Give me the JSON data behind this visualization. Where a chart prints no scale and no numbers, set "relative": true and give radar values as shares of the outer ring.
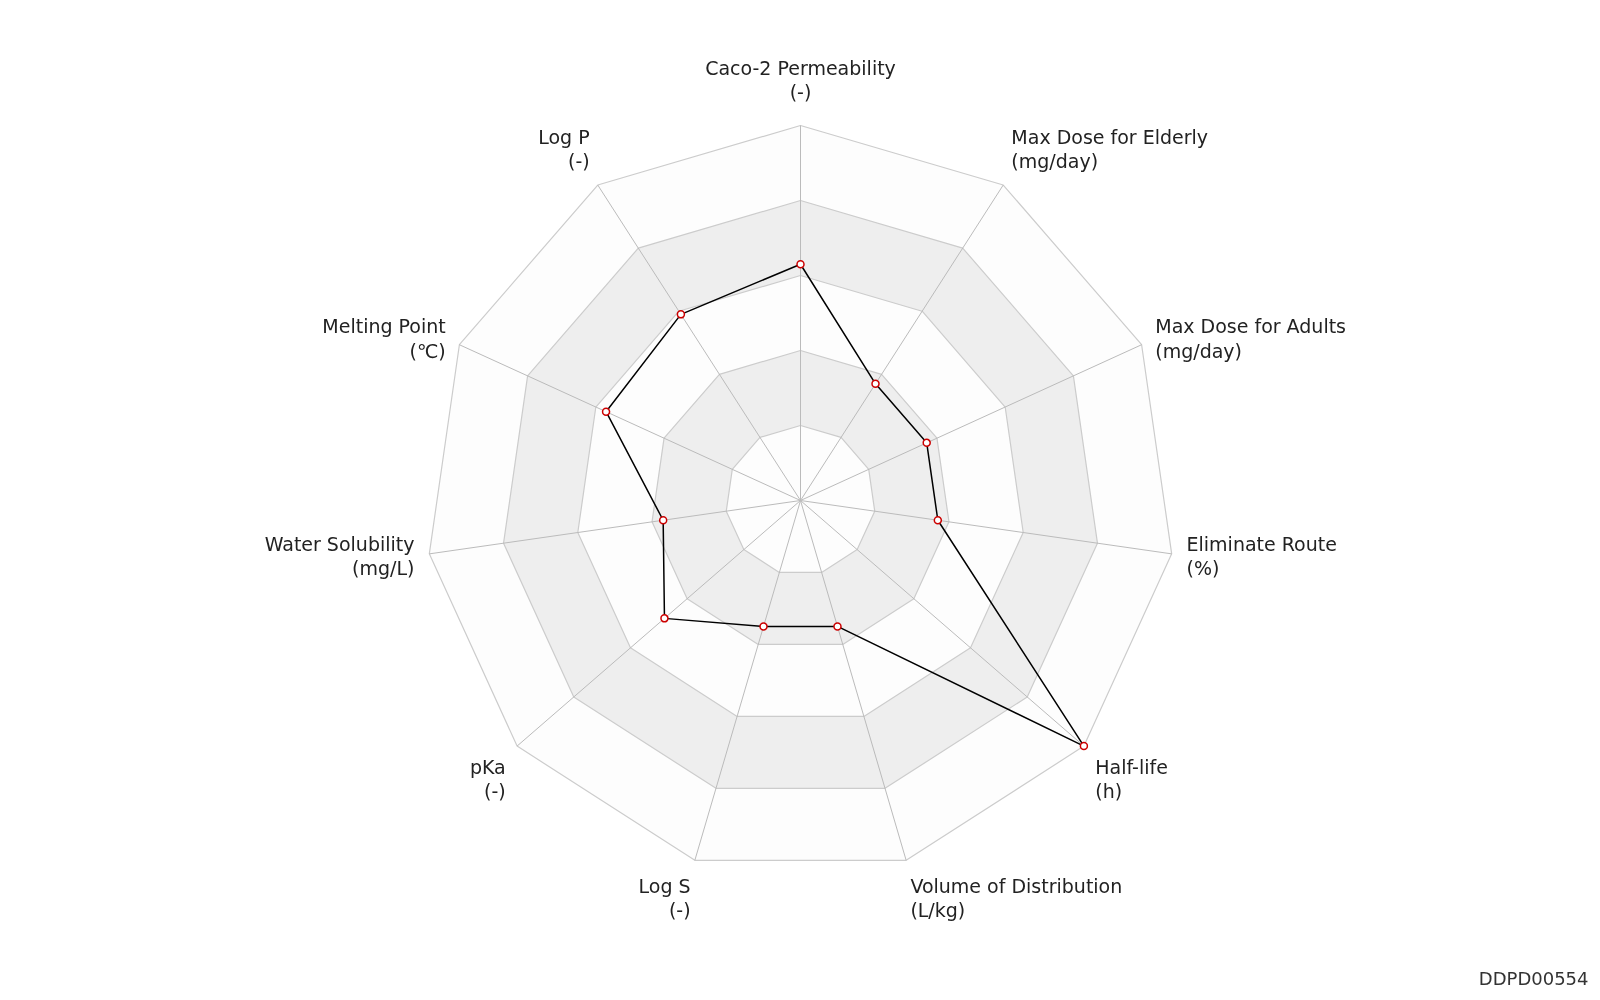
{
  "chart_data": {
    "type": "radar",
    "relative": true,
    "grid": true,
    "marker": "circle",
    "line_style": "solid",
    "categories": [
      "Caco-2 Permeability\n(-)",
      "Max Dose for Elderly\n(mg/day)",
      "Max Dose for Adults\n(mg/day)",
      "Eliminate Route\n(%)",
      "Half-life\n(h)",
      "Volume of Distribution\n(L/kg)",
      "Log S\n(-)",
      "pKa\n(-)",
      "Water Solubility\n(mg/L)",
      "Melting Point\n(℃)",
      "Log P\n(-)"
    ],
    "series": [
      {
        "color": "#000000",
        "values": [
          0.63,
          0.37,
          0.37,
          0.37,
          1.0,
          0.35,
          0.35,
          0.48,
          0.37,
          0.57,
          0.59
        ]
      }
    ],
    "annotations": [
      "DDPD00554"
    ]
  }
}
